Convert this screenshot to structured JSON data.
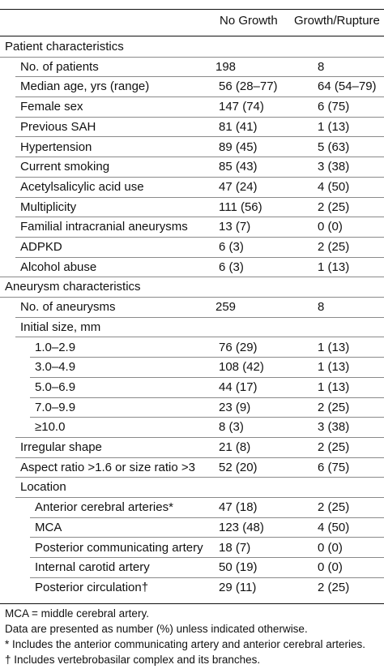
{
  "header": {
    "col1": "No Growth",
    "col2": "Growth/Rupture"
  },
  "rows": [
    {
      "label": "Patient characteristics",
      "v1": "",
      "v2": ""
    },
    {
      "label": "No. of patients",
      "v1": "198",
      "v2": "8"
    },
    {
      "label": "Median age, yrs (range)",
      "v1": "56 (28–77)",
      "v2": "64 (54–79)"
    },
    {
      "label": "Female sex",
      "v1": "147 (74)",
      "v2": "6 (75)"
    },
    {
      "label": "Previous SAH",
      "v1": "81 (41)",
      "v2": "1 (13)"
    },
    {
      "label": "Hypertension",
      "v1": "89 (45)",
      "v2": "5 (63)"
    },
    {
      "label": "Current smoking",
      "v1": "85 (43)",
      "v2": "3 (38)"
    },
    {
      "label": "Acetylsalicylic acid use",
      "v1": "47 (24)",
      "v2": "4 (50)"
    },
    {
      "label": "Multiplicity",
      "v1": "111 (56)",
      "v2": "2 (25)"
    },
    {
      "label": "Familial intracranial aneurysms",
      "v1": "13 (7)",
      "v2": "0 (0)"
    },
    {
      "label": "ADPKD",
      "v1": "6 (3)",
      "v2": "2 (25)"
    },
    {
      "label": "Alcohol abuse",
      "v1": "6 (3)",
      "v2": "1 (13)"
    },
    {
      "label": "Aneurysm characteristics",
      "v1": "",
      "v2": ""
    },
    {
      "label": "No. of aneurysms",
      "v1": "259",
      "v2": "8"
    },
    {
      "label": "Initial size, mm",
      "v1": "",
      "v2": ""
    },
    {
      "label": "1.0–2.9",
      "v1": "76 (29)",
      "v2": "1 (13)"
    },
    {
      "label": "3.0–4.9",
      "v1": "108 (42)",
      "v2": "1 (13)"
    },
    {
      "label": "5.0–6.9",
      "v1": "44 (17)",
      "v2": "1 (13)"
    },
    {
      "label": "7.0–9.9",
      "v1": "23 (9)",
      "v2": "2 (25)"
    },
    {
      "label": "≥10.0",
      "v1": "8 (3)",
      "v2": "3 (38)"
    },
    {
      "label": "Irregular shape",
      "v1": "21 (8)",
      "v2": "2 (25)"
    },
    {
      "label": "Aspect ratio >1.6 or size ratio >3",
      "v1": "52 (20)",
      "v2": "6 (75)"
    },
    {
      "label": "Location",
      "v1": "",
      "v2": ""
    },
    {
      "label": "Anterior cerebral arteries*",
      "v1": "47 (18)",
      "v2": "2 (25)"
    },
    {
      "label": "MCA",
      "v1": "123 (48)",
      "v2": "4 (50)"
    },
    {
      "label": "Posterior communicating artery",
      "v1": "18 (7)",
      "v2": "0 (0)"
    },
    {
      "label": "Internal carotid artery",
      "v1": "50 (19)",
      "v2": "0 (0)"
    },
    {
      "label": "Posterior circulation†",
      "v1": "29 (11)",
      "v2": "2 (25)"
    }
  ],
  "footnotes": [
    "MCA = middle cerebral artery.",
    "Data are presented as number (%) unless indicated otherwise.",
    "* Includes the anterior communicating artery and anterior cerebral arteries.",
    "† Includes vertebrobasilar complex and its branches."
  ]
}
